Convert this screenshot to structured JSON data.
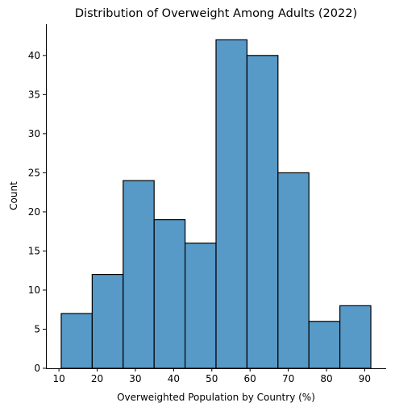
{
  "chart_data": {
    "type": "bar",
    "title": "Distribution of Overweight Among Adults (2022)",
    "xlabel": "Overweighted Population by Country (%)",
    "ylabel": "Count",
    "bins": [
      {
        "start": 10.6,
        "end": 18.7,
        "count": 7
      },
      {
        "start": 18.7,
        "end": 26.8,
        "count": 12
      },
      {
        "start": 26.8,
        "end": 34.9,
        "count": 24
      },
      {
        "start": 34.9,
        "end": 43.0,
        "count": 19
      },
      {
        "start": 43.0,
        "end": 51.1,
        "count": 16
      },
      {
        "start": 51.1,
        "end": 59.2,
        "count": 42
      },
      {
        "start": 59.2,
        "end": 67.3,
        "count": 40
      },
      {
        "start": 67.3,
        "end": 75.4,
        "count": 25
      },
      {
        "start": 75.4,
        "end": 83.5,
        "count": 6
      },
      {
        "start": 83.5,
        "end": 91.6,
        "count": 8
      }
    ],
    "xlim": [
      6.6,
      95.6
    ],
    "ylim": [
      0,
      44
    ],
    "xticks": [
      10,
      20,
      30,
      40,
      50,
      60,
      70,
      80,
      90
    ],
    "yticks": [
      0,
      5,
      10,
      15,
      20,
      25,
      30,
      35,
      40
    ],
    "bar_color": "#5799c7",
    "edge_color": "#000000",
    "grid": false,
    "legend": false
  }
}
